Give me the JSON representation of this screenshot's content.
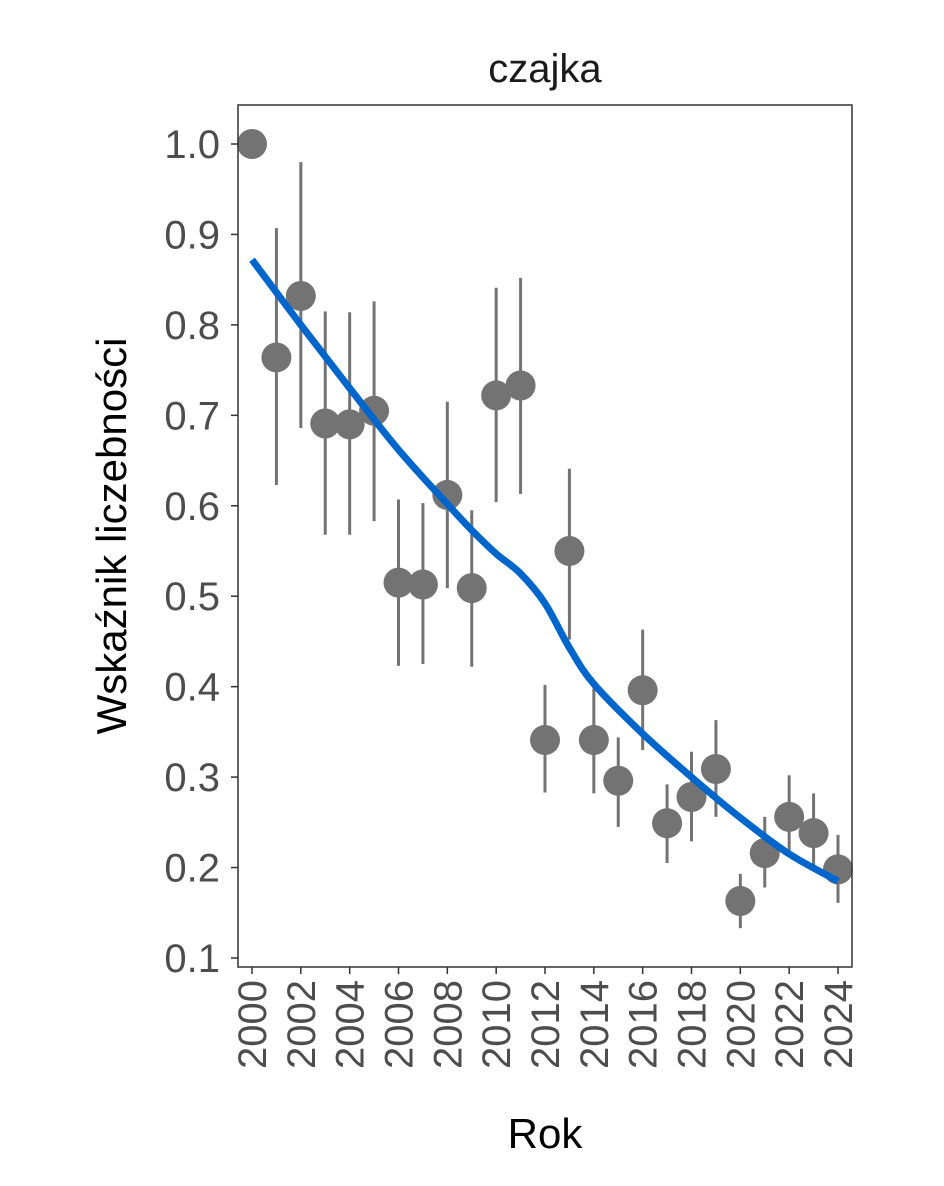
{
  "chart_data": {
    "type": "scatter",
    "title": "czajka",
    "xlabel": "Rok",
    "ylabel": "Wskaźnik liczebności",
    "xlim": [
      1999.4,
      2024.6
    ],
    "ylim": [
      0.09,
      1.045
    ],
    "x_ticks": [
      "2000",
      "2002",
      "2004",
      "2006",
      "2008",
      "2010",
      "2012",
      "2014",
      "2016",
      "2018",
      "2020",
      "2022",
      "2024"
    ],
    "y_ticks": [
      "0.1",
      "0.2",
      "0.3",
      "0.4",
      "0.5",
      "0.6",
      "0.7",
      "0.8",
      "0.9",
      "1.0"
    ],
    "grid": false,
    "point_color": "#737373",
    "trend_color": "#0066CC",
    "series": [
      {
        "name": "index",
        "x": [
          2000,
          2001,
          2002,
          2003,
          2004,
          2005,
          2006,
          2007,
          2008,
          2009,
          2010,
          2011,
          2012,
          2013,
          2014,
          2015,
          2016,
          2017,
          2018,
          2019,
          2020,
          2021,
          2022,
          2023,
          2024
        ],
        "y": [
          1.0,
          0.764,
          0.832,
          0.691,
          0.69,
          0.705,
          0.515,
          0.513,
          0.612,
          0.509,
          0.722,
          0.733,
          0.341,
          0.55,
          0.341,
          0.296,
          0.396,
          0.249,
          0.278,
          0.309,
          0.163,
          0.216,
          0.256,
          0.238,
          0.198
        ],
        "lower": [
          null,
          0.623,
          0.686,
          0.568,
          0.568,
          0.583,
          0.423,
          0.425,
          0.509,
          0.422,
          0.604,
          0.613,
          0.283,
          0.452,
          0.282,
          0.245,
          0.33,
          0.205,
          0.229,
          0.256,
          0.133,
          0.178,
          0.214,
          0.197,
          0.161
        ],
        "upper": [
          null,
          0.907,
          0.98,
          0.815,
          0.814,
          0.826,
          0.607,
          0.603,
          0.715,
          0.595,
          0.841,
          0.852,
          0.402,
          0.641,
          0.398,
          0.344,
          0.463,
          0.292,
          0.328,
          0.363,
          0.193,
          0.256,
          0.302,
          0.282,
          0.236
        ]
      },
      {
        "name": "trend",
        "x": [
          2000,
          2002,
          2004,
          2006,
          2008,
          2009,
          2010,
          2011,
          2012,
          2013,
          2014,
          2016,
          2018,
          2020,
          2022,
          2024
        ],
        "y": [
          0.872,
          0.8,
          0.73,
          0.662,
          0.602,
          0.573,
          0.547,
          0.525,
          0.492,
          0.443,
          0.403,
          0.348,
          0.3,
          0.255,
          0.215,
          0.185
        ]
      }
    ]
  }
}
